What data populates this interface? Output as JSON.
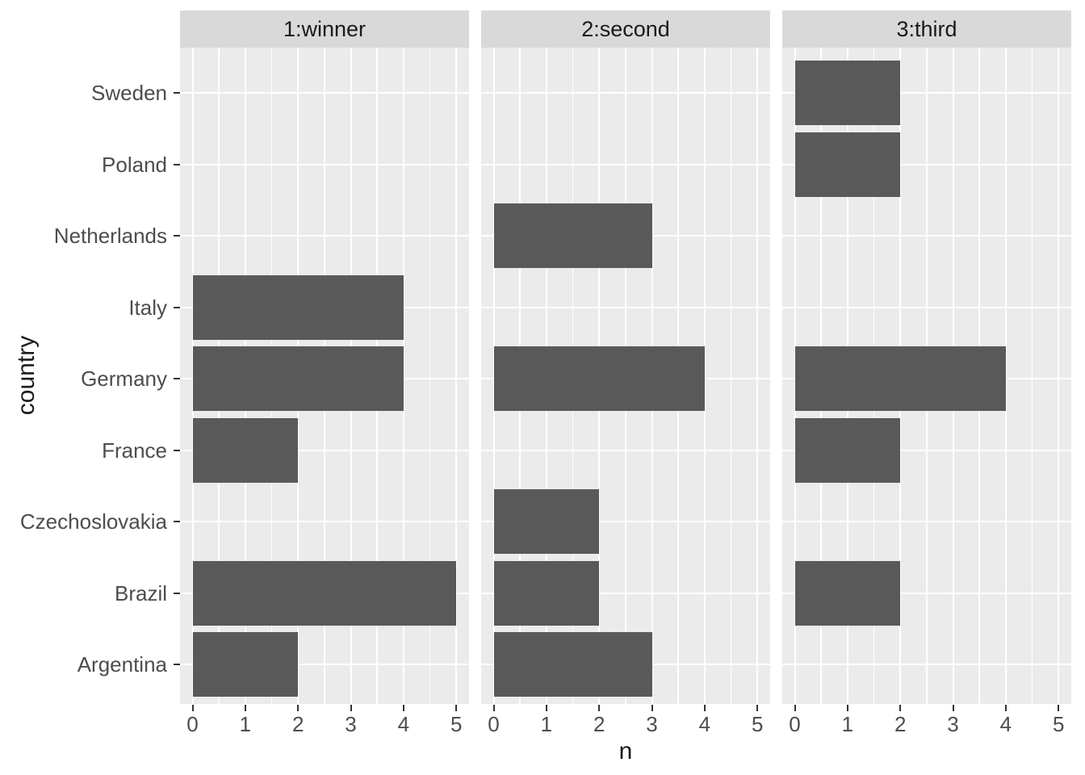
{
  "chart_data": {
    "type": "bar",
    "orientation": "horizontal",
    "facets": [
      "1:winner",
      "2:second",
      "3:third"
    ],
    "categories_top_to_bottom": [
      "Sweden",
      "Poland",
      "Netherlands",
      "Italy",
      "Germany",
      "France",
      "Czechoslovakia",
      "Brazil",
      "Argentina"
    ],
    "series": [
      {
        "name": "1:winner",
        "values": [
          0,
          0,
          0,
          4,
          4,
          2,
          0,
          5,
          2
        ]
      },
      {
        "name": "2:second",
        "values": [
          0,
          0,
          3,
          0,
          4,
          0,
          2,
          2,
          3
        ]
      },
      {
        "name": "3:third",
        "values": [
          2,
          2,
          0,
          0,
          4,
          2,
          0,
          2,
          0
        ]
      }
    ],
    "xlabel": "n",
    "ylabel": "country",
    "x_ticks": [
      "0",
      "1",
      "2",
      "3",
      "4",
      "5"
    ],
    "xlim": [
      0,
      5
    ],
    "grid": "major-and-minor-x, major-y, white",
    "legend": "none",
    "colors": {
      "bar": "#595959",
      "panel_background": "#ebebeb",
      "strip_background": "#d9d9d9",
      "gridline": "#ffffff",
      "tick_mark": "#333333",
      "tick_label": "#4d4d4d",
      "title_text": "#1a1a1a"
    }
  }
}
